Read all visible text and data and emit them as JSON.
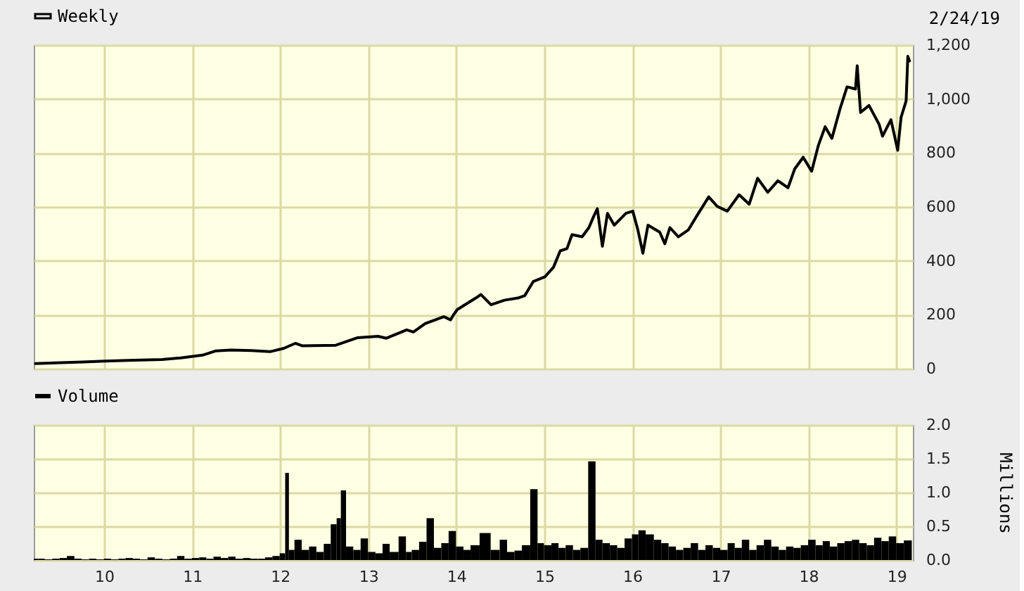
{
  "chart_data": [
    {
      "type": "line",
      "x": [
        "2009-03-22",
        "2009-07-05",
        "2009-10-04",
        "2010-01-03",
        "2010-05-02",
        "2010-08-29",
        "2010-11-14",
        "2011-02-13",
        "2011-04-10",
        "2011-06-12",
        "2011-09-04",
        "2011-11-20",
        "2012-01-15",
        "2012-03-04",
        "2012-04-01",
        "2012-08-19",
        "2012-11-18",
        "2013-02-10",
        "2013-03-17",
        "2013-06-09",
        "2013-07-07",
        "2013-08-25",
        "2013-11-10",
        "2013-12-08",
        "2013-12-22",
        "2014-01-05",
        "2014-03-23",
        "2014-04-13",
        "2014-05-25",
        "2014-07-20",
        "2014-09-14",
        "2014-10-12",
        "2014-11-16",
        "2015-01-04",
        "2015-02-08",
        "2015-03-08",
        "2015-04-05",
        "2015-04-26",
        "2015-06-07",
        "2015-07-05",
        "2015-07-26",
        "2015-08-09",
        "2015-08-30",
        "2015-09-20",
        "2015-10-18",
        "2015-12-06",
        "2016-01-03",
        "2016-01-24",
        "2016-02-14",
        "2016-03-06",
        "2016-04-24",
        "2016-05-15",
        "2016-06-05",
        "2016-07-10",
        "2016-08-21",
        "2016-09-25",
        "2016-11-13",
        "2016-12-18",
        "2017-01-29",
        "2017-03-19",
        "2017-04-30",
        "2017-06-04",
        "2017-07-16",
        "2017-08-27",
        "2017-10-08",
        "2017-11-05",
        "2017-12-10",
        "2018-01-14",
        "2018-02-11",
        "2018-03-11",
        "2018-04-08",
        "2018-05-13",
        "2018-06-10",
        "2018-07-15",
        "2018-07-22",
        "2018-08-05",
        "2018-09-09",
        "2018-10-21",
        "2018-11-04",
        "2018-12-09",
        "2019-01-06",
        "2019-01-20",
        "2019-02-10",
        "2019-02-17",
        "2019-02-24"
      ],
      "series": [
        {
          "name": "Weekly",
          "color": "#000000",
          "values": [
            19,
            22,
            25,
            28,
            31,
            34,
            40,
            50,
            66,
            69,
            67,
            63,
            75,
            94,
            85,
            87,
            115,
            120,
            113,
            144,
            136,
            167,
            193,
            181,
            202,
            219,
            262,
            275,
            237,
            254,
            262,
            271,
            323,
            341,
            376,
            437,
            445,
            497,
            489,
            523,
            567,
            593,
            454,
            576,
            532,
            576,
            584,
            515,
            428,
            532,
            506,
            463,
            523,
            489,
            515,
            567,
            637,
            602,
            584,
            645,
            610,
            706,
            654,
            697,
            671,
            741,
            784,
            732,
            828,
            897,
            854,
            967,
            1045,
            1037,
            1123,
            950,
            976,
            906,
            862,
            923,
            810,
            932,
            993,
            1158,
            1141
          ]
        }
      ],
      "xlim": [
        "2009-03-15",
        "2019-03-10"
      ],
      "xticks": [
        {
          "value": "2010",
          "label": null
        },
        {
          "value": "2011",
          "label": null
        },
        {
          "value": "2012",
          "label": null
        },
        {
          "value": "2013",
          "label": null
        },
        {
          "value": "2014",
          "label": null
        },
        {
          "value": "2015",
          "label": null
        },
        {
          "value": "2016",
          "label": null
        },
        {
          "value": "2017",
          "label": null
        },
        {
          "value": "2018",
          "label": null
        },
        {
          "value": "2019",
          "label": null
        }
      ],
      "ylim": [
        0,
        1200
      ],
      "yticks": [
        0,
        200,
        400,
        600,
        800,
        {
          "value": 1000,
          "label": "1,000"
        },
        {
          "value": 1200,
          "label": "1,200"
        }
      ],
      "grid": true,
      "legend": "top left",
      "tick_labels": "y",
      "annotations": [
        "2/24/19"
      ]
    },
    {
      "type": "bar",
      "x": [
        "2009-03-22",
        "2009-04-15",
        "2009-05-15",
        "2009-06-15",
        "2009-07-15",
        "2009-08-15",
        "2009-09-15",
        "2009-10-15",
        "2009-11-15",
        "2009-12-15",
        "2010-01-15",
        "2010-02-15",
        "2010-03-15",
        "2010-04-15",
        "2010-05-15",
        "2010-06-15",
        "2010-07-15",
        "2010-08-15",
        "2010-09-15",
        "2010-10-15",
        "2010-11-15",
        "2010-12-15",
        "2011-01-15",
        "2011-02-15",
        "2011-03-15",
        "2011-04-15",
        "2011-05-15",
        "2011-06-15",
        "2011-07-15",
        "2011-08-15",
        "2011-09-15",
        "2011-10-15",
        "2011-11-15",
        "2011-12-15",
        "2012-01-15",
        "2012-01-29",
        "2012-02-15",
        "2012-03-15",
        "2012-04-15",
        "2012-05-15",
        "2012-06-15",
        "2012-07-15",
        "2012-08-12",
        "2012-09-02",
        "2012-09-16",
        "2012-10-15",
        "2012-11-15",
        "2012-12-15",
        "2013-01-15",
        "2013-02-15",
        "2013-03-15",
        "2013-04-15",
        "2013-05-28",
        "2013-06-15",
        "2013-07-15",
        "2013-08-15",
        "2013-09-15",
        "2013-10-15",
        "2013-11-15",
        "2013-12-15",
        "2014-01-15",
        "2014-02-15",
        "2014-03-15",
        "2014-05-01",
        "2014-06-15",
        "2014-07-15",
        "2014-08-15",
        "2014-09-15",
        "2014-10-15",
        "2014-11-23",
        "2014-12-15",
        "2015-01-15",
        "2015-02-15",
        "2015-03-15",
        "2015-04-15",
        "2015-05-15",
        "2015-06-15",
        "2015-07-19",
        "2015-08-15",
        "2015-09-15",
        "2015-10-15",
        "2015-11-15",
        "2015-12-15",
        "2016-01-15",
        "2016-02-07",
        "2016-03-15",
        "2016-04-15",
        "2016-05-15",
        "2016-06-15",
        "2016-07-15",
        "2016-08-15",
        "2016-09-15",
        "2016-10-15",
        "2016-11-15",
        "2016-12-15",
        "2017-01-15",
        "2017-02-15",
        "2017-03-15",
        "2017-04-15",
        "2017-05-15",
        "2017-06-15",
        "2017-07-15",
        "2017-08-15",
        "2017-09-15",
        "2017-10-15",
        "2017-11-15",
        "2017-12-15",
        "2018-01-15",
        "2018-02-15",
        "2018-03-15",
        "2018-04-15",
        "2018-05-15",
        "2018-06-15",
        "2018-07-15",
        "2018-08-15",
        "2018-09-15",
        "2018-10-15",
        "2018-11-15",
        "2018-12-15",
        "2019-01-15",
        "2019-02-17"
      ],
      "series": [
        {
          "name": "Volume",
          "color": "#000000",
          "values": [
            0.02,
            0.02,
            0.01,
            0.02,
            0.03,
            0.06,
            0.02,
            0.01,
            0.02,
            0.01,
            0.02,
            0.01,
            0.02,
            0.03,
            0.02,
            0.01,
            0.04,
            0.02,
            0.01,
            0.02,
            0.06,
            0.02,
            0.03,
            0.04,
            0.02,
            0.05,
            0.03,
            0.05,
            0.02,
            0.03,
            0.02,
            0.02,
            0.04,
            0.06,
            0.1,
            1.29,
            0.15,
            0.3,
            0.15,
            0.2,
            0.12,
            0.24,
            0.53,
            0.62,
            1.03,
            0.2,
            0.15,
            0.32,
            0.12,
            0.1,
            0.24,
            0.12,
            0.35,
            0.12,
            0.15,
            0.27,
            0.62,
            0.18,
            0.25,
            0.43,
            0.2,
            0.15,
            0.22,
            0.4,
            0.15,
            0.3,
            0.12,
            0.14,
            0.22,
            1.05,
            0.25,
            0.22,
            0.25,
            0.18,
            0.22,
            0.15,
            0.18,
            1.46,
            0.3,
            0.25,
            0.22,
            0.18,
            0.32,
            0.38,
            0.44,
            0.38,
            0.3,
            0.25,
            0.2,
            0.15,
            0.18,
            0.25,
            0.15,
            0.22,
            0.18,
            0.15,
            0.25,
            0.18,
            0.3,
            0.15,
            0.22,
            0.3,
            0.2,
            0.15,
            0.2,
            0.18,
            0.22,
            0.3,
            0.22,
            0.28,
            0.2,
            0.25,
            0.28,
            0.3,
            0.25,
            0.22,
            0.33,
            0.28,
            0.35,
            0.25,
            0.29
          ]
        }
      ],
      "ylabel": "Millions",
      "xlim": [
        "2009-03-15",
        "2019-03-10"
      ],
      "xticks": [
        {
          "value": "2010",
          "label": "10"
        },
        {
          "value": "2011",
          "label": "11"
        },
        {
          "value": "2012",
          "label": "12"
        },
        {
          "value": "2013",
          "label": "13"
        },
        {
          "value": "2014",
          "label": "14"
        },
        {
          "value": "2015",
          "label": "15"
        },
        {
          "value": "2016",
          "label": "16"
        },
        {
          "value": "2017",
          "label": "17"
        },
        {
          "value": "2018",
          "label": "18"
        },
        {
          "value": "2019",
          "label": "19"
        }
      ],
      "ylim": [
        0,
        2
      ],
      "yticks": [
        {
          "value": 0,
          "label": "0.0"
        },
        0.5,
        {
          "value": 1,
          "label": "1.0"
        },
        1.5,
        {
          "value": 2,
          "label": "2.0"
        }
      ],
      "grid": true,
      "legend": "top left"
    }
  ]
}
